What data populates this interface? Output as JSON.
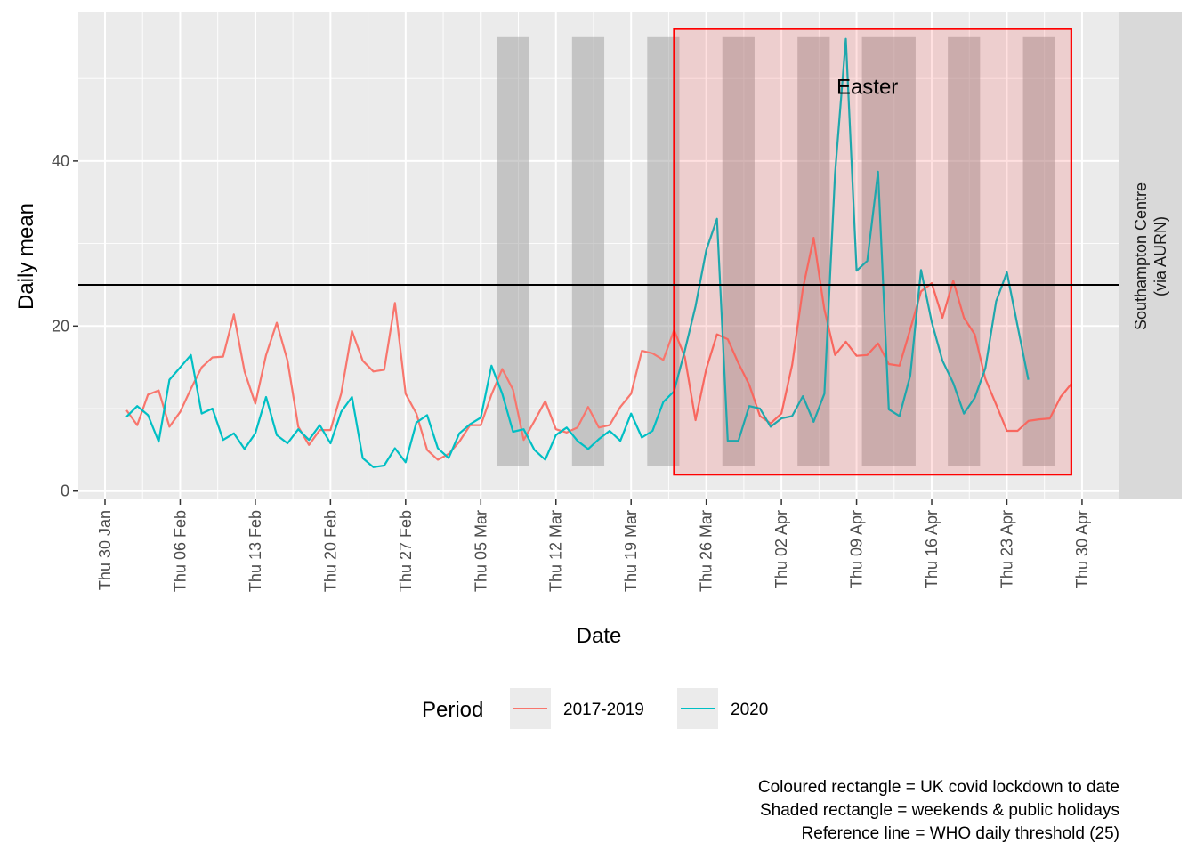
{
  "chart_data": {
    "type": "line",
    "xlabel": "Date",
    "ylabel": "Daily mean",
    "x_start": "2020-01-30",
    "x_end": "2020-05-01",
    "ylim": [
      -1,
      58
    ],
    "y_ticks": [
      0,
      20,
      40
    ],
    "x_ticks": [
      {
        "date": "2020-01-30",
        "label": "Thu 30 Jan"
      },
      {
        "date": "2020-02-06",
        "label": "Thu 06 Feb"
      },
      {
        "date": "2020-02-13",
        "label": "Thu 13 Feb"
      },
      {
        "date": "2020-02-20",
        "label": "Thu 20 Feb"
      },
      {
        "date": "2020-02-27",
        "label": "Thu 27 Feb"
      },
      {
        "date": "2020-03-05",
        "label": "Thu 05 Mar"
      },
      {
        "date": "2020-03-12",
        "label": "Thu 12 Mar"
      },
      {
        "date": "2020-03-19",
        "label": "Thu 19 Mar"
      },
      {
        "date": "2020-03-26",
        "label": "Thu 26 Mar"
      },
      {
        "date": "2020-04-02",
        "label": "Thu 02 Apr"
      },
      {
        "date": "2020-04-09",
        "label": "Thu 09 Apr"
      },
      {
        "date": "2020-04-16",
        "label": "Thu 16 Apr"
      },
      {
        "date": "2020-04-23",
        "label": "Thu 23 Apr"
      },
      {
        "date": "2020-04-30",
        "label": "Thu 30 Apr"
      }
    ],
    "grid": true,
    "facet_label": [
      "Southampton Centre",
      "(via AURN)"
    ],
    "reference_line": {
      "y": 25
    },
    "lockdown_rect": {
      "start": "2020-03-23",
      "end": "2020-04-29",
      "ymin": 2,
      "ymax": 56,
      "color": "#ff0000"
    },
    "shaded_periods": [
      {
        "start": "2020-03-07",
        "end": "2020-03-09"
      },
      {
        "start": "2020-03-14",
        "end": "2020-03-16"
      },
      {
        "start": "2020-03-21",
        "end": "2020-03-23"
      },
      {
        "start": "2020-03-28",
        "end": "2020-03-30"
      },
      {
        "start": "2020-04-04",
        "end": "2020-04-06"
      },
      {
        "start": "2020-04-10",
        "end": "2020-04-14"
      },
      {
        "start": "2020-04-18",
        "end": "2020-04-20"
      },
      {
        "start": "2020-04-25",
        "end": "2020-04-27"
      }
    ],
    "shade_ymin": 3,
    "shade_ymax": 55,
    "annotation": {
      "text": "Easter",
      "date": "2020-04-10",
      "y": 49
    },
    "legend": {
      "title": "Period",
      "position": "bottom"
    },
    "series": [
      {
        "name": "2017-2019",
        "color": "#F8766D",
        "start": "2020-02-01",
        "values": [
          9.8,
          8.0,
          11.7,
          12.2,
          7.8,
          9.6,
          12.4,
          15.0,
          16.2,
          16.3,
          21.4,
          14.5,
          10.6,
          16.5,
          20.4,
          15.8,
          7.8,
          5.6,
          7.4,
          7.4,
          11.8,
          19.4,
          15.8,
          14.5,
          14.7,
          22.8,
          11.8,
          9.4,
          5.0,
          3.8,
          4.5,
          6.0,
          8.0,
          8.0,
          11.7,
          14.8,
          12.3,
          6.2,
          8.5,
          10.9,
          7.5,
          7.1,
          7.7,
          10.2,
          7.7,
          8.0,
          10.2,
          11.8,
          17.0,
          16.7,
          15.9,
          19.5,
          16.3,
          8.6,
          14.8,
          19.0,
          18.4,
          15.5,
          12.9,
          9.1,
          8.2,
          9.4,
          15.3,
          24.5,
          30.7,
          22.0,
          16.5,
          18.1,
          16.4,
          16.5,
          17.9,
          15.4,
          15.2,
          19.6,
          24.2,
          25.2,
          21.0,
          25.5,
          21.0,
          19.0,
          13.6,
          10.5,
          7.3,
          7.3,
          8.5,
          8.7,
          8.8,
          11.4,
          13.0
        ]
      },
      {
        "name": "2020",
        "color": "#00BFC4",
        "start": "2020-02-01",
        "values": [
          9.0,
          10.3,
          9.2,
          6.0,
          13.5,
          15.0,
          16.5,
          9.4,
          10.0,
          6.2,
          7.0,
          5.1,
          7.0,
          11.4,
          6.8,
          5.8,
          7.5,
          6.2,
          8.0,
          5.8,
          9.6,
          11.4,
          4.0,
          2.9,
          3.1,
          5.2,
          3.5,
          8.3,
          9.2,
          5.2,
          4.0,
          7.0,
          8.1,
          8.9,
          15.2,
          11.8,
          7.2,
          7.5,
          5.0,
          3.8,
          6.8,
          7.7,
          6.1,
          5.1,
          6.3,
          7.3,
          6.1,
          9.4,
          6.5,
          7.3,
          10.8,
          12.1,
          17.0,
          22.4,
          29.2,
          33.0,
          6.1,
          6.1,
          10.3,
          10.0,
          7.8,
          8.8,
          9.1,
          11.5,
          8.4,
          11.8,
          38.5,
          54.8,
          26.7,
          27.9,
          38.7,
          9.9,
          9.1,
          14.0,
          26.8,
          20.5,
          15.8,
          13.1,
          9.4,
          11.3,
          14.9,
          23.0,
          26.5,
          20.0,
          13.5
        ]
      }
    ],
    "caption": [
      "Coloured rectangle = UK covid lockdown to date",
      "Shaded rectangle = weekends & public holidays",
      "Reference line = WHO daily threshold (25)"
    ]
  }
}
